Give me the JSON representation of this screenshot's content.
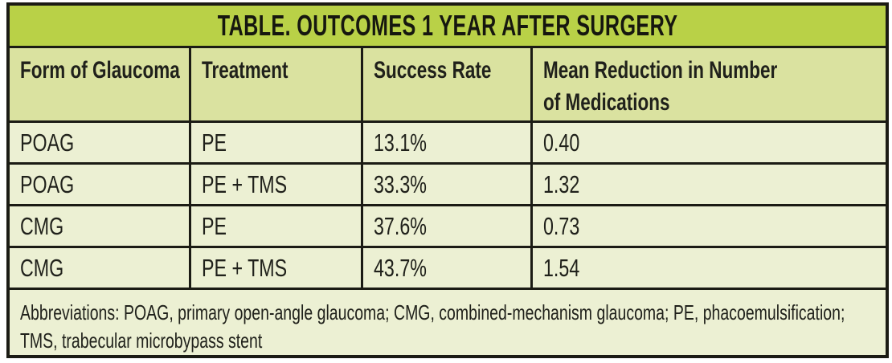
{
  "colors": {
    "page_bg": "#ffffff",
    "border": "#1b1b14",
    "title_bg": "#b9d147",
    "header_bg": "#dae2a0",
    "body_bg": "#ecf0d3",
    "text": "#20211b"
  },
  "table": {
    "title": "TABLE. OUTCOMES 1 YEAR AFTER SURGERY",
    "columns": [
      {
        "label": "Form of Glaucoma"
      },
      {
        "label": "Treatment"
      },
      {
        "label": "Success Rate"
      },
      {
        "label": "Mean Reduction in Number",
        "label_line2": "of Medications"
      }
    ],
    "rows": [
      {
        "form_of_glaucoma": "POAG",
        "treatment": "PE",
        "success_rate": "13.1%",
        "mean_reduction": "0.40"
      },
      {
        "form_of_glaucoma": "POAG",
        "treatment": "PE + TMS",
        "success_rate": "33.3%",
        "mean_reduction": "1.32"
      },
      {
        "form_of_glaucoma": "CMG",
        "treatment": "PE",
        "success_rate": "37.6%",
        "mean_reduction": "0.73"
      },
      {
        "form_of_glaucoma": "CMG",
        "treatment": "PE + TMS",
        "success_rate": "43.7%",
        "mean_reduction": "1.54"
      }
    ],
    "footnote_lines": [
      "Abbreviations: POAG, primary open-angle glaucoma; CMG, combined-mechanism glaucoma; PE, phacoemulsification;",
      "TMS, trabecular microbypass stent"
    ]
  }
}
